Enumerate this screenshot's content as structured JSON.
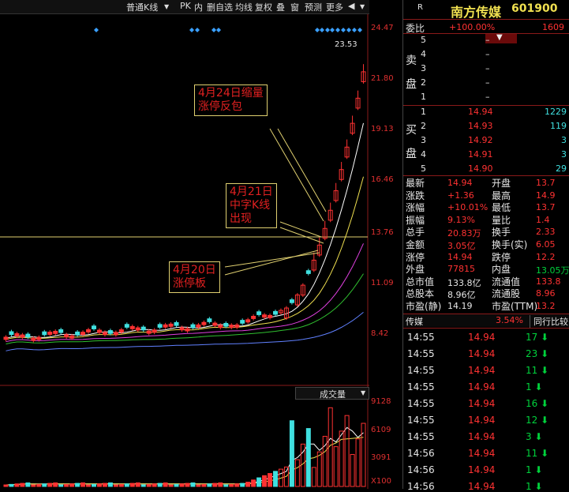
{
  "toolbar": {
    "items": [
      "普通K线",
      "PK",
      "内",
      "删自选",
      "均线",
      "复权",
      "叠",
      "窗",
      "预测",
      "更多"
    ]
  },
  "chart": {
    "price_labels": [
      "24.47",
      "21.80",
      "19.13",
      "16.46",
      "13.76",
      "11.09",
      "8.42"
    ],
    "top_price": "23.53",
    "volume_title": "成交量",
    "volume_labels": [
      "9128",
      "6109",
      "3091",
      "X100"
    ],
    "notes": {
      "n1": "4月24日缩量\n涨停反包",
      "n2": "4月21日\n中字K线\n出现",
      "n3": "4月20日\n涨停板"
    },
    "colors": {
      "up": "#ff3232",
      "down": "#40e0e0",
      "ma1": "#ffffff",
      "ma2": "#f0e050",
      "ma3": "#e040e0",
      "ma4": "#30c030",
      "ma5": "#6080ff"
    }
  },
  "panel": {
    "badge": "R",
    "stock_name": "南方传媒",
    "stock_code": "601900",
    "weibi_label": "委比",
    "weibi_value": "+100.00%",
    "weibi_right": "1609",
    "sell_label": "卖盘",
    "buy_label": "买盘",
    "sell": [
      {
        "lvl": "5",
        "price": "–",
        "vol": ""
      },
      {
        "lvl": "4",
        "price": "–",
        "vol": ""
      },
      {
        "lvl": "3",
        "price": "–",
        "vol": ""
      },
      {
        "lvl": "2",
        "price": "–",
        "vol": ""
      },
      {
        "lvl": "1",
        "price": "–",
        "vol": ""
      }
    ],
    "buy": [
      {
        "lvl": "1",
        "price": "14.94",
        "vol": "1229"
      },
      {
        "lvl": "2",
        "price": "14.93",
        "vol": "119"
      },
      {
        "lvl": "3",
        "price": "14.92",
        "vol": "3"
      },
      {
        "lvl": "4",
        "price": "14.91",
        "vol": "3"
      },
      {
        "lvl": "5",
        "price": "14.90",
        "vol": "29"
      }
    ],
    "stats": [
      {
        "l1": "最新",
        "v1": "14.94",
        "l2": "开盘",
        "v2": "13.7"
      },
      {
        "l1": "涨跌",
        "v1": "+1.36",
        "l2": "最高",
        "v2": "14.9"
      },
      {
        "l1": "涨幅",
        "v1": "+10.01%",
        "l2": "最低",
        "v2": "13.7"
      },
      {
        "l1": "振幅",
        "v1": "9.13%",
        "l2": "量比",
        "v2": "1.4"
      },
      {
        "l1": "总手",
        "v1": "20.83万",
        "l2": "换手",
        "v2": "2.33"
      },
      {
        "l1": "金额",
        "v1": "3.05亿",
        "l2": "换手(实)",
        "v2": "6.05"
      },
      {
        "l1": "涨停",
        "v1": "14.94",
        "l2": "跌停",
        "v2": "12.2"
      },
      {
        "l1": "外盘",
        "v1": "77815",
        "l2": "内盘",
        "v2": "13.05万"
      },
      {
        "l1": "总市值",
        "v1": "133.8亿",
        "l2": "流通值",
        "v2": "133.8"
      },
      {
        "l1": "总股本",
        "v1": "8.96亿",
        "l2": "流通股",
        "v2": "8.96"
      },
      {
        "l1": "市盈(静)",
        "v1": "14.19",
        "l2": "市盈(TTM)",
        "v2": "13.2"
      }
    ],
    "sector": {
      "name": "传媒",
      "pct": "3.54%",
      "tab": "同行比较"
    },
    "trades": [
      {
        "t": "14:55",
        "p": "14.94",
        "v": "17"
      },
      {
        "t": "14:55",
        "p": "14.94",
        "v": "23"
      },
      {
        "t": "14:55",
        "p": "14.94",
        "v": "11"
      },
      {
        "t": "14:55",
        "p": "14.94",
        "v": "1"
      },
      {
        "t": "14:55",
        "p": "14.94",
        "v": "16"
      },
      {
        "t": "14:55",
        "p": "14.94",
        "v": "12"
      },
      {
        "t": "14:55",
        "p": "14.94",
        "v": "3"
      },
      {
        "t": "14:56",
        "p": "14.94",
        "v": "11"
      },
      {
        "t": "14:56",
        "p": "14.94",
        "v": "1"
      },
      {
        "t": "14:56",
        "p": "14.94",
        "v": "1"
      }
    ]
  }
}
